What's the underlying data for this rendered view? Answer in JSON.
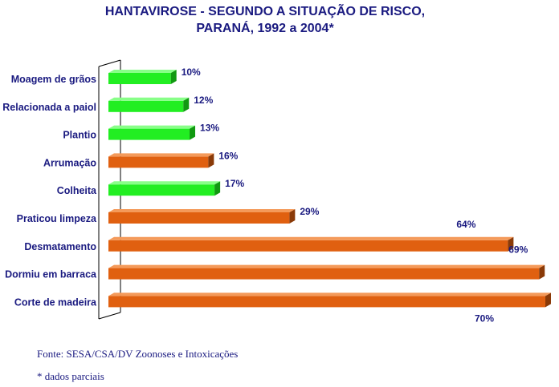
{
  "colors": {
    "text": "#1a1a80",
    "green_front": "#22ee22",
    "green_side": "#119911",
    "green_top": "#88ff88",
    "orange_front": "#e06010",
    "orange_side": "#8a3a08",
    "orange_top": "#f49a5a",
    "axis": "#000000"
  },
  "chart_data": {
    "type": "bar",
    "orientation": "horizontal",
    "title": [
      "HANTAVIROSE - SEGUNDO A SITUAÇÃO DE RISCO,",
      "PARANÁ, 1992 a 2004*"
    ],
    "categories": [
      "Moagem de grãos",
      "Relacionada a paiol",
      "Plantio",
      "Arrumação",
      "Colheita",
      "Praticou limpeza",
      "Desmatamento",
      "Dormiu em barraca",
      "Corte de madeira"
    ],
    "values": [
      10,
      12,
      13,
      16,
      17,
      29,
      64,
      69,
      70
    ],
    "value_labels": [
      "10%",
      "12%",
      "13%",
      "16%",
      "17%",
      "29%",
      "64%",
      "69%",
      "70%"
    ],
    "bar_colors": [
      "green",
      "green",
      "green",
      "orange",
      "green",
      "orange",
      "orange",
      "orange",
      "orange"
    ],
    "unit": "%",
    "xlim": [
      0,
      70
    ],
    "grid": false,
    "legend": "none"
  },
  "footer": {
    "source": "Fonte: SESA/CSA/DV Zoonoses e Intoxicações",
    "note": "* dados parciais"
  }
}
